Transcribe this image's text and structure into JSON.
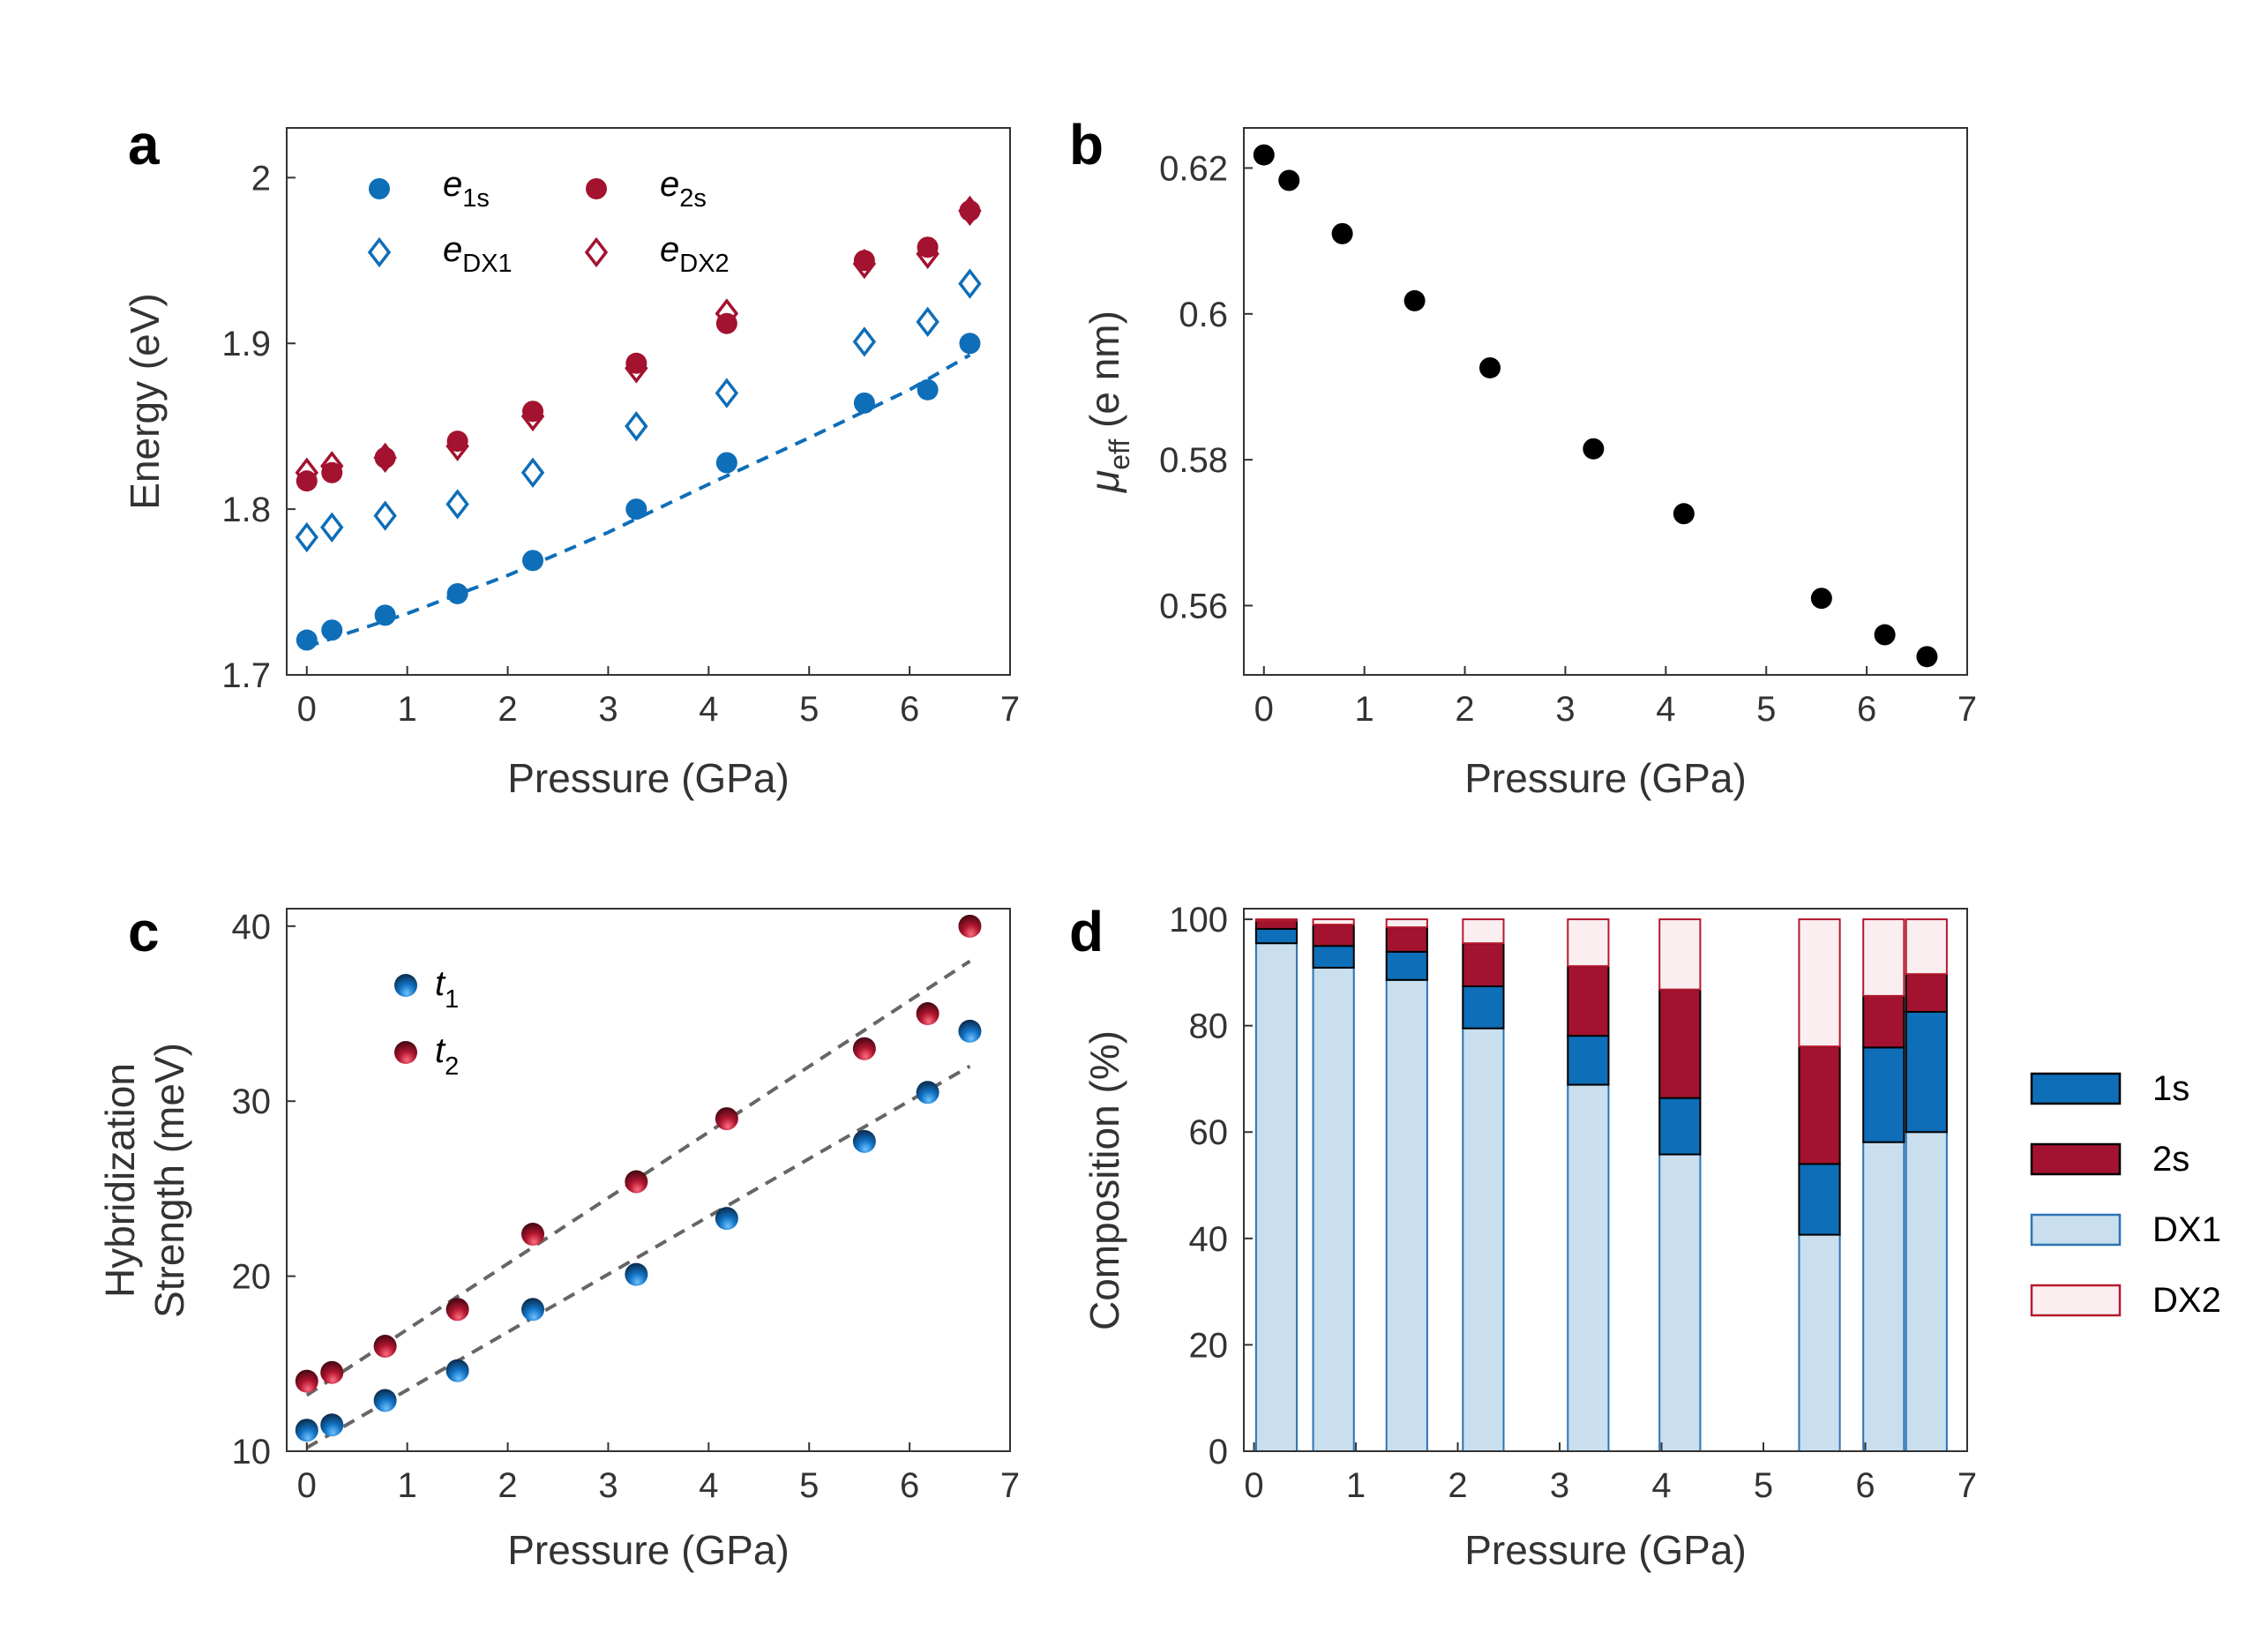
{
  "colors": {
    "blue": "#0e6eb8",
    "red": "#a3122f",
    "black": "#000000",
    "axis": "#333333",
    "dx1_fill": "#c9dfee",
    "dx1_edge": "#2a74b5",
    "dx2_fill": "#fbeef0",
    "dx2_edge": "#b51a2e",
    "fit_gray": "#666666"
  },
  "chart_data": [
    {
      "panel": "a",
      "type": "scatter",
      "xlabel": "Pressure (GPa)",
      "ylabel": "Energy (eV)",
      "xlim": [
        -0.2,
        7
      ],
      "ylim": [
        1.7,
        2.03
      ],
      "xticks": [
        "0",
        "1",
        "2",
        "3",
        "4",
        "5",
        "6",
        "7"
      ],
      "yticks": [
        "1.7",
        "1.8",
        "1.9",
        "2"
      ],
      "ytick_values": [
        1.7,
        1.8,
        1.9,
        2.0
      ],
      "x": [
        0,
        0.25,
        0.78,
        1.5,
        2.25,
        3.28,
        4.18,
        5.55,
        6.18,
        6.6
      ],
      "series": [
        {
          "name": "e_1s",
          "legend_base": "e",
          "legend_sub": "1s",
          "marker": "filled-circle",
          "color": "blue",
          "values": [
            1.721,
            1.727,
            1.736,
            1.749,
            1.769,
            1.8,
            1.828,
            1.864,
            1.872,
            1.9
          ]
        },
        {
          "name": "e_2s",
          "legend_base": "e",
          "legend_sub": "2s",
          "marker": "filled-circle",
          "color": "red",
          "values": [
            1.817,
            1.822,
            1.831,
            1.841,
            1.859,
            1.888,
            1.912,
            1.95,
            1.958,
            1.98
          ]
        },
        {
          "name": "e_DX1",
          "legend_base": "e",
          "legend_sub": "DX1",
          "marker": "open-diamond",
          "color": "blue",
          "values": [
            1.783,
            1.789,
            1.796,
            1.803,
            1.822,
            1.85,
            1.87,
            1.901,
            1.913,
            1.936
          ]
        },
        {
          "name": "e_DX2",
          "legend_base": "e",
          "legend_sub": "DX2",
          "marker": "open-diamond",
          "color": "red",
          "values": [
            1.822,
            1.826,
            1.831,
            1.838,
            1.856,
            1.885,
            1.918,
            1.948,
            1.954,
            1.98
          ]
        }
      ],
      "fit": {
        "series": "e_1s",
        "style": "dashed",
        "color": "blue",
        "x": [
          0,
          1,
          2,
          3,
          4,
          5,
          6,
          6.6
        ],
        "y": [
          1.717,
          1.737,
          1.76,
          1.786,
          1.815,
          1.843,
          1.872,
          1.893
        ]
      }
    },
    {
      "panel": "b",
      "type": "scatter",
      "xlabel": "Pressure (GPa)",
      "ylabel_base": "μ",
      "ylabel_sub": "eff",
      "ylabel_rest": " (e nm)",
      "xlim": [
        -0.2,
        7
      ],
      "ylim": [
        0.5505,
        0.6255
      ],
      "xticks": [
        "0",
        "1",
        "2",
        "3",
        "4",
        "5",
        "6",
        "7"
      ],
      "yticks": [
        "0.56",
        "0.58",
        "0.6",
        "0.62"
      ],
      "ytick_values": [
        0.56,
        0.58,
        0.6,
        0.62
      ],
      "x": [
        0,
        0.25,
        0.78,
        1.5,
        2.25,
        3.28,
        4.18,
        5.55,
        6.18,
        6.6
      ],
      "values": [
        0.6218,
        0.6183,
        0.611,
        0.6018,
        0.5926,
        0.5815,
        0.5726,
        0.561,
        0.556,
        0.553
      ]
    },
    {
      "panel": "c",
      "type": "scatter",
      "xlabel": "Pressure (GPa)",
      "ylabel_line1": "Hybridization",
      "ylabel_line2": "Strength (meV)",
      "xlim": [
        -0.2,
        7
      ],
      "ylim": [
        10,
        41
      ],
      "xticks": [
        "0",
        "1",
        "2",
        "3",
        "4",
        "5",
        "6",
        "7"
      ],
      "yticks": [
        "10",
        "20",
        "30",
        "40"
      ],
      "ytick_values": [
        10,
        20,
        30,
        40
      ],
      "x": [
        0,
        0.25,
        0.78,
        1.5,
        2.25,
        3.28,
        4.18,
        5.55,
        6.18,
        6.6
      ],
      "series": [
        {
          "name": "t_1",
          "legend_base": "t",
          "legend_sub": "1",
          "color": "blue",
          "values": [
            11.2,
            11.5,
            12.9,
            14.6,
            18.1,
            20.1,
            23.3,
            27.7,
            30.5,
            34.0
          ]
        },
        {
          "name": "t_2",
          "legend_base": "t",
          "legend_sub": "2",
          "color": "red",
          "values": [
            14.0,
            14.5,
            16.0,
            18.1,
            22.4,
            25.4,
            29.0,
            33.0,
            35.0,
            40.0
          ]
        }
      ],
      "fits": [
        {
          "style": "dashed",
          "color": "fit_gray",
          "x": [
            0,
            6.6
          ],
          "y": [
            10.2,
            32.0
          ]
        },
        {
          "style": "dashed",
          "color": "fit_gray",
          "x": [
            0,
            6.6
          ],
          "y": [
            13.2,
            38.0
          ]
        }
      ]
    },
    {
      "panel": "d",
      "type": "bar",
      "stacked": true,
      "xlabel": "Pressure (GPa)",
      "ylabel": "Composition (%)",
      "xlim": [
        -0.1,
        7
      ],
      "ylim": [
        0,
        102
      ],
      "xticks": [
        "0",
        "1",
        "2",
        "3",
        "4",
        "5",
        "6",
        "7"
      ],
      "yticks": [
        "0",
        "20",
        "40",
        "60",
        "80",
        "100"
      ],
      "ytick_values": [
        0,
        20,
        40,
        60,
        80,
        100
      ],
      "x": [
        0.22,
        0.78,
        1.5,
        2.25,
        3.28,
        4.18,
        5.55,
        6.18,
        6.6
      ],
      "bar_width": 0.4,
      "series": [
        {
          "name": "DX1",
          "fill": "dx1_fill",
          "edge": "dx1_edge",
          "values": [
            95.5,
            90.9,
            88.6,
            79.5,
            68.9,
            55.8,
            40.7,
            58.1,
            60.0
          ]
        },
        {
          "name": "1s",
          "fill": "blue",
          "edge": "black",
          "values": [
            2.7,
            4.1,
            5.3,
            7.9,
            9.2,
            10.6,
            13.3,
            17.8,
            22.6
          ]
        },
        {
          "name": "2s",
          "fill": "red",
          "edge": "black",
          "values": [
            1.5,
            4.0,
            4.6,
            8.1,
            13.1,
            20.4,
            22.1,
            9.7,
            7.1
          ]
        },
        {
          "name": "DX2",
          "fill": "dx2_fill",
          "edge": "dx2_edge",
          "values": [
            0.3,
            1.0,
            1.5,
            4.5,
            8.8,
            13.2,
            23.9,
            14.4,
            10.3
          ]
        }
      ],
      "legend_order": [
        "1s",
        "2s",
        "DX1",
        "DX2"
      ]
    }
  ],
  "panel_letters": [
    "a",
    "b",
    "c",
    "d"
  ]
}
